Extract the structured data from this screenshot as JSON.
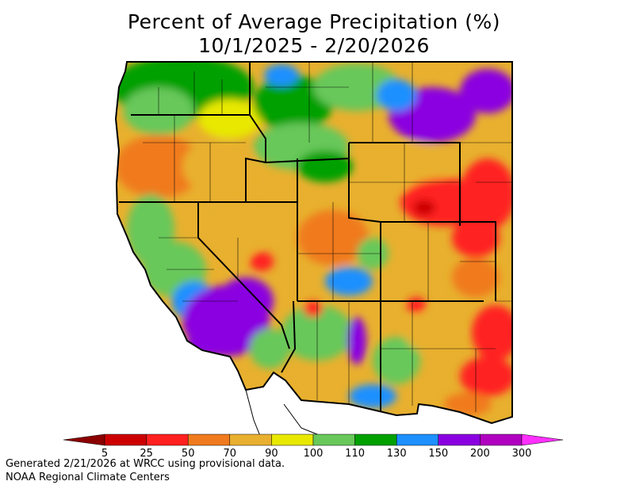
{
  "title": {
    "line1": "Percent of Average Precipitation (%)",
    "line2": "10/1/2025 - 2/20/2026"
  },
  "legend": {
    "bins": [
      {
        "label": "5",
        "color": "#8b0000"
      },
      {
        "label": "25",
        "color": "#cc0000"
      },
      {
        "label": "50",
        "color": "#ff2020"
      },
      {
        "label": "70",
        "color": "#f07a1e"
      },
      {
        "label": "90",
        "color": "#e8b02e"
      },
      {
        "label": "100",
        "color": "#e8e800"
      },
      {
        "label": "110",
        "color": "#68c85a"
      },
      {
        "label": "130",
        "color": "#00a000"
      },
      {
        "label": "150",
        "color": "#1e90ff"
      },
      {
        "label": "200",
        "color": "#8a00e0"
      },
      {
        "label": "300",
        "color": "#b000c0"
      }
    ],
    "overflow_color": "#ff30ff"
  },
  "footer": {
    "line1": "Generated 2/21/2026 at WRCC using provisional data.",
    "line2": "NOAA Regional Climate Centers"
  }
}
